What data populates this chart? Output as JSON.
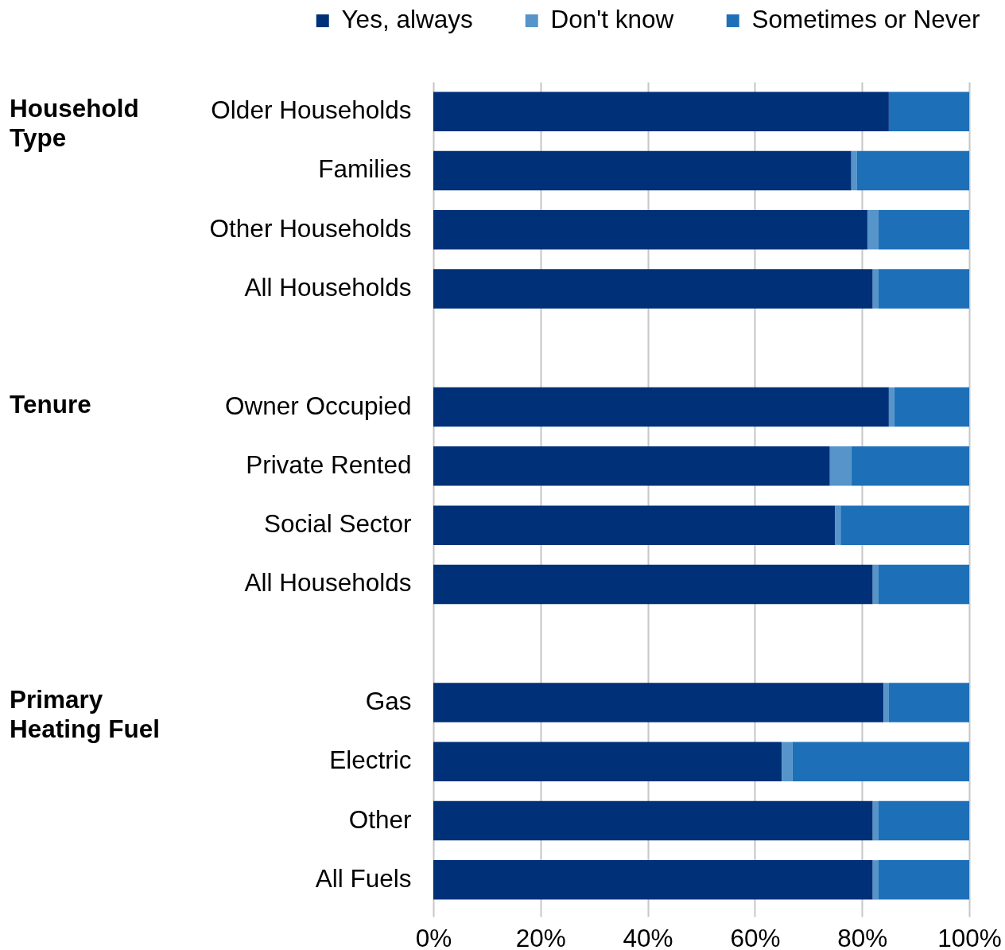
{
  "chart_data": {
    "type": "bar",
    "orientation": "horizontal",
    "stacked": true,
    "categories": [
      "Older Households",
      "Families",
      "Other Households",
      "All Households",
      null,
      "Owner Occupied",
      "Private Rented",
      "Social Sector",
      "All Households",
      null,
      "Gas",
      "Electric",
      "Other",
      "All Fuels"
    ],
    "series": [
      {
        "name": "Yes, always",
        "color": "#003078",
        "values": [
          85,
          78,
          81,
          82,
          null,
          85,
          74,
          75,
          82,
          null,
          84,
          65,
          82,
          82
        ]
      },
      {
        "name": "Don't know",
        "color": "#5694ca",
        "values": [
          0,
          1,
          2,
          1,
          null,
          1,
          4,
          1,
          1,
          null,
          1,
          2,
          1,
          1
        ]
      },
      {
        "name": "Sometimes or Never",
        "color": "#1d70b8",
        "values": [
          15,
          21,
          17,
          17,
          null,
          14,
          22,
          24,
          17,
          null,
          15,
          33,
          17,
          17
        ]
      }
    ],
    "xlim": [
      0,
      100
    ],
    "xticks": [
      {
        "value": 0,
        "label": "0%"
      },
      {
        "value": 20,
        "label": "20%"
      },
      {
        "value": 40,
        "label": "40%"
      },
      {
        "value": 60,
        "label": "60%"
      },
      {
        "value": 80,
        "label": "80%"
      },
      {
        "value": 100,
        "label": "100%"
      }
    ],
    "grid": "x",
    "legend": "top",
    "annotations": [
      "Household Type",
      "Tenure",
      "Primary Heating Fuel"
    ]
  }
}
